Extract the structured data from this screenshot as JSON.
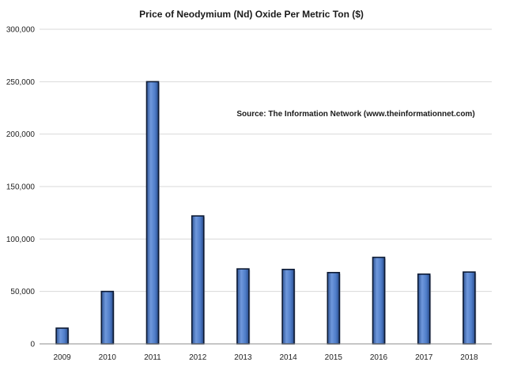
{
  "chart_data": {
    "type": "bar",
    "title": "Price of Neodymium (Nd)  Oxide Per Metric Ton ($)",
    "annotation": "Source: The Information Network (www.theinformationnet.com)",
    "categories": [
      "2009",
      "2010",
      "2011",
      "2012",
      "2013",
      "2014",
      "2015",
      "2016",
      "2017",
      "2018"
    ],
    "values": [
      15000,
      50000,
      250000,
      122000,
      71500,
      71000,
      68000,
      82500,
      66500,
      68500
    ],
    "yticks": [
      "0",
      "50,000",
      "100,000",
      "150,000",
      "200,000",
      "250,000",
      "300,000"
    ],
    "ylim": [
      0,
      300000
    ],
    "grid": true,
    "bar_color": "#4f7dc9",
    "bar_edge_color": "#0d1a33"
  }
}
